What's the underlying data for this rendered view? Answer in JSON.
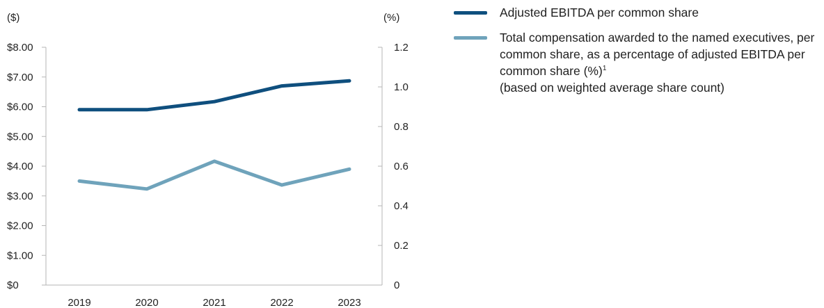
{
  "colors": {
    "ebitda": "#0f4f7e",
    "compensation": "#6fa3bb",
    "axis": "#b5b5b5"
  },
  "chart_data": {
    "type": "line",
    "categories": [
      "2019",
      "2020",
      "2021",
      "2022",
      "2023"
    ],
    "left_axis": {
      "unit_label": "($)",
      "range": [
        0,
        8
      ],
      "ticks": [
        0,
        1,
        2,
        3,
        4,
        5,
        6,
        7,
        8
      ],
      "tick_labels": [
        "$0",
        "$1.00",
        "$2.00",
        "$3.00",
        "$4.00",
        "$5.00",
        "$6.00",
        "$7.00",
        "$8.00"
      ]
    },
    "right_axis": {
      "unit_label": "(%)",
      "range": [
        0,
        1.2
      ],
      "ticks": [
        0,
        0.2,
        0.4,
        0.6,
        0.8,
        1.0,
        1.2
      ],
      "tick_labels": [
        "0",
        "0.2",
        "0.4",
        "0.6",
        "0.8",
        "1.0",
        "1.2"
      ]
    },
    "series": [
      {
        "key": "ebitda",
        "name": "Adjusted EBITDA per common share",
        "axis": "left",
        "color": "#0f4f7e",
        "values": [
          5.9,
          5.9,
          6.17,
          6.7,
          6.87
        ]
      },
      {
        "key": "compensation",
        "name": "Total compensation awarded to the named executives, per common share, as a percentage of adjusted EBITDA per common share (%)",
        "footnote_marker": "1",
        "name_note": "(based on weighted average share count)",
        "axis": "right",
        "color": "#6fa3bb",
        "values": [
          0.525,
          0.485,
          0.625,
          0.505,
          0.585
        ]
      }
    ],
    "grid": false,
    "legend_position": "top-right"
  }
}
